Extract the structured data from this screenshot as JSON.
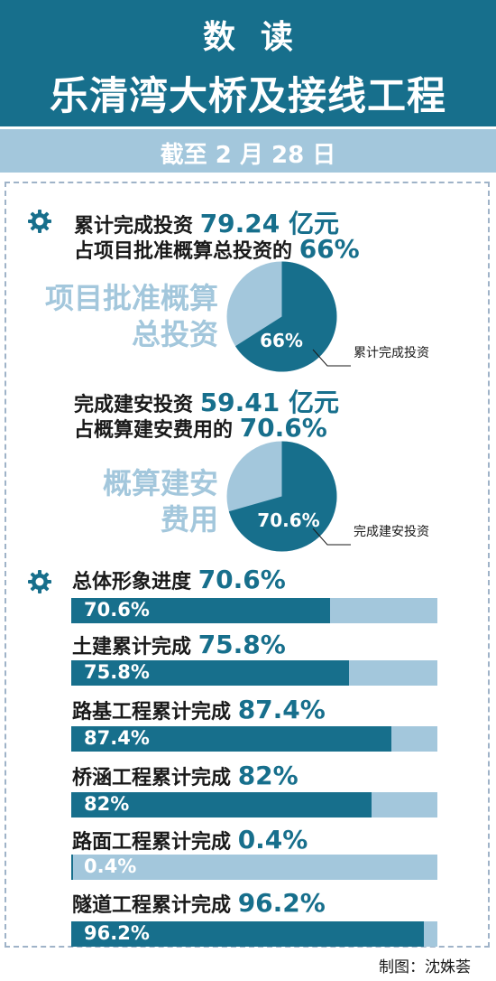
{
  "header": {
    "title_small": "数读",
    "title_main": "乐清湾大桥及接线工程"
  },
  "date_band": "截至 2 月 28 日",
  "section1": {
    "line1_label": "累计完成投资",
    "line1_value": "79.24 亿元",
    "line2_label": "占项目批准概算总投资的",
    "line2_value": "66%",
    "ghost_label_1": "项目批准概算",
    "ghost_label_2": "总投资",
    "pie_percent": 66,
    "pie_label": "66%",
    "pie_note": "累计完成投资"
  },
  "section2": {
    "line1_label": "完成建安投资",
    "line1_value": "59.41 亿元",
    "line2_label": "占概算建安费用的",
    "line2_value": "70.6%",
    "ghost_label_1": "概算建安",
    "ghost_label_2": "费用",
    "pie_percent": 70.6,
    "pie_label": "70.6%",
    "pie_note": "完成建安投资"
  },
  "bars": [
    {
      "title": "总体形象进度",
      "value_text": "70.6%",
      "percent": 70.6
    },
    {
      "title": "土建累计完成",
      "value_text": "75.8%",
      "percent": 75.8
    },
    {
      "title": "路基工程累计完成",
      "value_text": "87.4%",
      "percent": 87.4
    },
    {
      "title": "桥涵工程累计完成",
      "value_text": "82%",
      "percent": 82
    },
    {
      "title": "路面工程累计完成",
      "value_text": "0.4%",
      "percent": 0.4
    },
    {
      "title": "隧道工程累计完成",
      "value_text": "96.2%",
      "percent": 96.2
    }
  ],
  "credit": "制图：沈姝荟",
  "colors": {
    "primary": "#176f8c",
    "light": "#a3c7dc",
    "frame": "#9fb3c8"
  },
  "icons": {
    "section_icon": "gear-icon"
  }
}
